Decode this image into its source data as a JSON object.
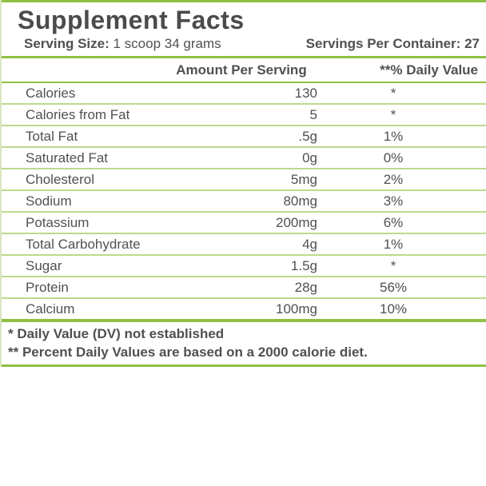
{
  "label": {
    "title": "Supplement Facts",
    "serving_size_label": "Serving Size:",
    "serving_size_value": "1 scoop 34 grams",
    "servings_per_container_label": "Servings Per Container:",
    "servings_per_container_value": "27"
  },
  "table": {
    "amount_header": "Amount Per Serving",
    "dv_header": "**% Daily Value",
    "rows": [
      {
        "name": "Calories",
        "amount": "130",
        "dv": "*"
      },
      {
        "name": "Calories from Fat",
        "amount": "5",
        "dv": "*"
      },
      {
        "name": "Total Fat",
        "amount": ".5g",
        "dv": "1%"
      },
      {
        "name": "Saturated Fat",
        "amount": "0g",
        "dv": "0%"
      },
      {
        "name": "Cholesterol",
        "amount": "5mg",
        "dv": "2%"
      },
      {
        "name": "Sodium",
        "amount": "80mg",
        "dv": "3%"
      },
      {
        "name": "Potassium",
        "amount": "200mg",
        "dv": "6%"
      },
      {
        "name": "Total Carbohydrate",
        "amount": "4g",
        "dv": "1%"
      },
      {
        "name": "Sugar",
        "amount": "1.5g",
        "dv": "*"
      },
      {
        "name": "Protein",
        "amount": "28g",
        "dv": "56%"
      },
      {
        "name": "Calcium",
        "amount": "100mg",
        "dv": "10%"
      }
    ]
  },
  "footnotes": [
    "* Daily Value (DV) not established",
    "** Percent Daily Values are based on a 2000 calorie diet."
  ],
  "colors": {
    "accent_green": "#8fc043",
    "separator_green": "#bcd98c",
    "text_gray": "#4f5052"
  }
}
